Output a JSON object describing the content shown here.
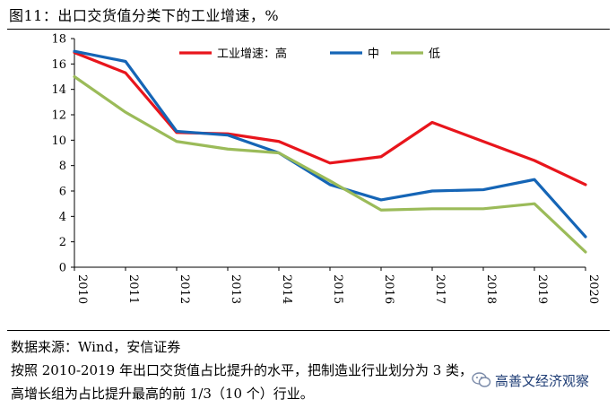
{
  "figure_title": "图11：出口交货值分类下的工业增速，%",
  "source_text": "数据来源：Wind，安信证券",
  "note_lines": [
    "按照 2010-2019 年出口交货值占比提升的水平，把制造业行业划分为 3 类，",
    "高增长组为占比提升最高的前 1/3（10 个）行业。"
  ],
  "watermark_text": "高善文经济观察",
  "chart_data": {
    "type": "line",
    "title": "出口交货值分类下的工业增速，%",
    "xlabel": "",
    "ylabel": "%",
    "x": [
      "2010",
      "2011",
      "2012",
      "2013",
      "2014",
      "2015",
      "2016",
      "2017",
      "2018",
      "2019",
      "2020"
    ],
    "ylim": [
      0,
      18
    ],
    "yticks": [
      0,
      2,
      4,
      6,
      8,
      10,
      12,
      14,
      16,
      18
    ],
    "grid": false,
    "legend_position": "top-right",
    "series": [
      {
        "name": "工业增速：高",
        "color": "#e8151c",
        "values": [
          16.9,
          15.3,
          10.6,
          10.5,
          9.9,
          8.2,
          8.7,
          11.4,
          9.9,
          8.4,
          6.5
        ]
      },
      {
        "name": "中",
        "color": "#1565b6",
        "values": [
          17.0,
          16.2,
          10.7,
          10.4,
          9.0,
          6.5,
          5.3,
          6.0,
          6.1,
          6.9,
          2.4
        ]
      },
      {
        "name": "低",
        "color": "#9bbb59",
        "values": [
          15.0,
          12.2,
          9.9,
          9.3,
          9.0,
          6.8,
          4.5,
          4.6,
          4.6,
          5.0,
          1.2
        ]
      }
    ]
  }
}
